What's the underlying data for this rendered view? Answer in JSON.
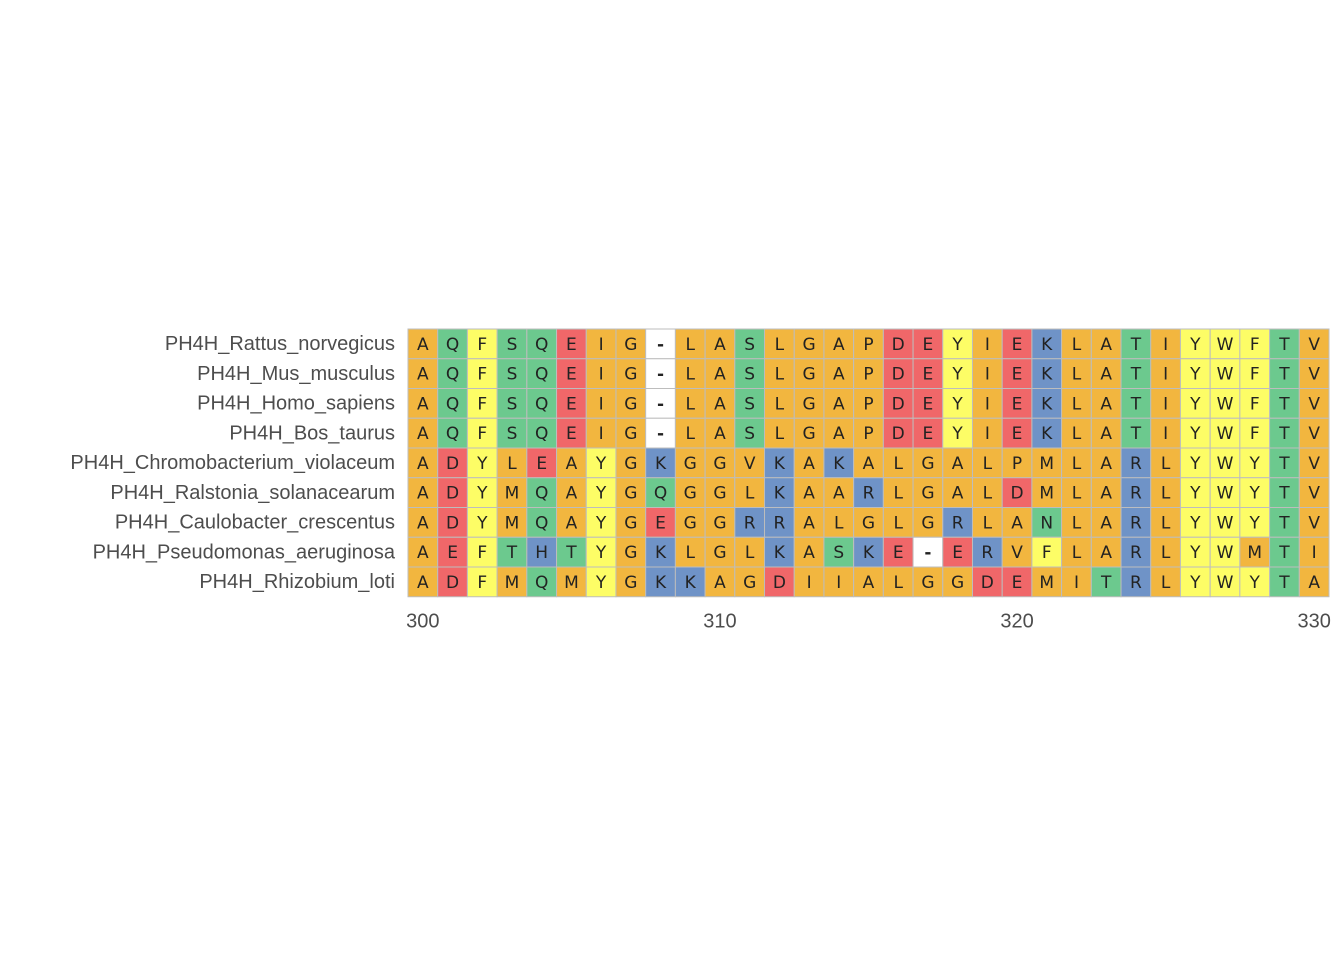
{
  "chart_data": {
    "type": "msa",
    "sequences": [
      {
        "name": "PH4H_Rattus_norvegicus",
        "residues": [
          "A",
          "Q",
          "F",
          "S",
          "Q",
          "E",
          "I",
          "G",
          "-",
          "L",
          "A",
          "S",
          "L",
          "G",
          "A",
          "P",
          "D",
          "E",
          "Y",
          "I",
          "E",
          "K",
          "L",
          "A",
          "T",
          "I",
          "Y",
          "W",
          "F",
          "T",
          "V"
        ]
      },
      {
        "name": "PH4H_Mus_musculus",
        "residues": [
          "A",
          "Q",
          "F",
          "S",
          "Q",
          "E",
          "I",
          "G",
          "-",
          "L",
          "A",
          "S",
          "L",
          "G",
          "A",
          "P",
          "D",
          "E",
          "Y",
          "I",
          "E",
          "K",
          "L",
          "A",
          "T",
          "I",
          "Y",
          "W",
          "F",
          "T",
          "V"
        ]
      },
      {
        "name": "PH4H_Homo_sapiens",
        "residues": [
          "A",
          "Q",
          "F",
          "S",
          "Q",
          "E",
          "I",
          "G",
          "-",
          "L",
          "A",
          "S",
          "L",
          "G",
          "A",
          "P",
          "D",
          "E",
          "Y",
          "I",
          "E",
          "K",
          "L",
          "A",
          "T",
          "I",
          "Y",
          "W",
          "F",
          "T",
          "V"
        ]
      },
      {
        "name": "PH4H_Bos_taurus",
        "residues": [
          "A",
          "Q",
          "F",
          "S",
          "Q",
          "E",
          "I",
          "G",
          "-",
          "L",
          "A",
          "S",
          "L",
          "G",
          "A",
          "P",
          "D",
          "E",
          "Y",
          "I",
          "E",
          "K",
          "L",
          "A",
          "T",
          "I",
          "Y",
          "W",
          "F",
          "T",
          "V"
        ]
      },
      {
        "name": "PH4H_Chromobacterium_violaceum",
        "residues": [
          "A",
          "D",
          "Y",
          "L",
          "E",
          "A",
          "Y",
          "G",
          "K",
          "G",
          "G",
          "V",
          "K",
          "A",
          "K",
          "A",
          "L",
          "G",
          "A",
          "L",
          "P",
          "M",
          "L",
          "A",
          "R",
          "L",
          "Y",
          "W",
          "Y",
          "T",
          "V"
        ]
      },
      {
        "name": "PH4H_Ralstonia_solanacearum",
        "residues": [
          "A",
          "D",
          "Y",
          "M",
          "Q",
          "A",
          "Y",
          "G",
          "Q",
          "G",
          "G",
          "L",
          "K",
          "A",
          "A",
          "R",
          "L",
          "G",
          "A",
          "L",
          "D",
          "M",
          "L",
          "A",
          "R",
          "L",
          "Y",
          "W",
          "Y",
          "T",
          "V"
        ]
      },
      {
        "name": "PH4H_Caulobacter_crescentus",
        "residues": [
          "A",
          "D",
          "Y",
          "M",
          "Q",
          "A",
          "Y",
          "G",
          "E",
          "G",
          "G",
          "R",
          "R",
          "A",
          "L",
          "G",
          "L",
          "G",
          "R",
          "L",
          "A",
          "N",
          "L",
          "A",
          "R",
          "L",
          "Y",
          "W",
          "Y",
          "T",
          "V"
        ]
      },
      {
        "name": "PH4H_Pseudomonas_aeruginosa",
        "residues": [
          "A",
          "E",
          "F",
          "T",
          "H",
          "T",
          "Y",
          "G",
          "K",
          "L",
          "G",
          "L",
          "K",
          "A",
          "S",
          "K",
          "E",
          "-",
          "E",
          "R",
          "V",
          "F",
          "L",
          "A",
          "R",
          "L",
          "Y",
          "W",
          "M",
          "T",
          "I"
        ]
      },
      {
        "name": "PH4H_Rhizobium_loti",
        "residues": [
          "A",
          "D",
          "F",
          "M",
          "Q",
          "M",
          "Y",
          "G",
          "K",
          "K",
          "A",
          "G",
          "D",
          "I",
          "I",
          "A",
          "L",
          "G",
          "G",
          "D",
          "E",
          "M",
          "I",
          "T",
          "R",
          "L",
          "Y",
          "W",
          "Y",
          "T",
          "A"
        ]
      }
    ],
    "xlim": [
      299.5,
      330.5
    ],
    "xticks": [
      300,
      310,
      320,
      330
    ],
    "colors": {
      "A": "#f2b63f",
      "I": "#f2b63f",
      "L": "#f2b63f",
      "M": "#f2b63f",
      "V": "#f2b63f",
      "G": "#f2b63f",
      "P": "#f2b63f",
      "F": "#fdfd66",
      "Y": "#fdfd66",
      "W": "#fdfd66",
      "Q": "#6cc98e",
      "S": "#6cc98e",
      "T": "#6cc98e",
      "N": "#6cc98e",
      "E": "#f06769",
      "D": "#f06769",
      "K": "#6f93c7",
      "R": "#6f93c7",
      "H": "#6f93c7",
      "-": "#ffffff"
    }
  }
}
